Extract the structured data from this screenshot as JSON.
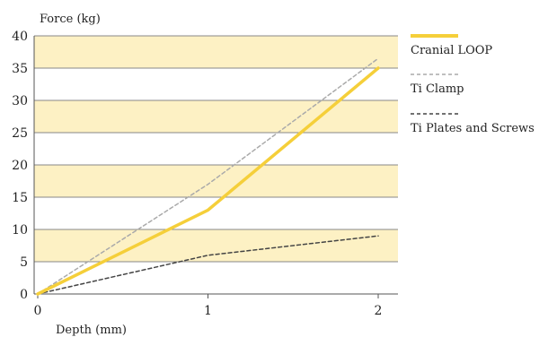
{
  "chart_data": {
    "type": "line",
    "xlabel": "Depth (mm)",
    "ylabel": "Force (kg)",
    "x": [
      0,
      1,
      2
    ],
    "xlim": [
      0,
      2.1
    ],
    "ylim": [
      0,
      40
    ],
    "xticks": [
      "0",
      "1",
      "2"
    ],
    "yticks": [
      "0",
      "5",
      "10",
      "15",
      "20",
      "25",
      "30",
      "35",
      "40"
    ],
    "legend_position": "right",
    "band_color": "#fdf1c4",
    "series": [
      {
        "name": "Cranial LOOP",
        "values": [
          0,
          13,
          35
        ],
        "color": "#f5cf3a",
        "style": "solid"
      },
      {
        "name": "Ti Clamp",
        "values": [
          0,
          17,
          36.5
        ],
        "color": "#aaaaaa",
        "style": "dashed"
      },
      {
        "name": "Ti Plates and Screws",
        "values": [
          0,
          6,
          9
        ],
        "color": "#444444",
        "style": "dashed"
      }
    ]
  }
}
